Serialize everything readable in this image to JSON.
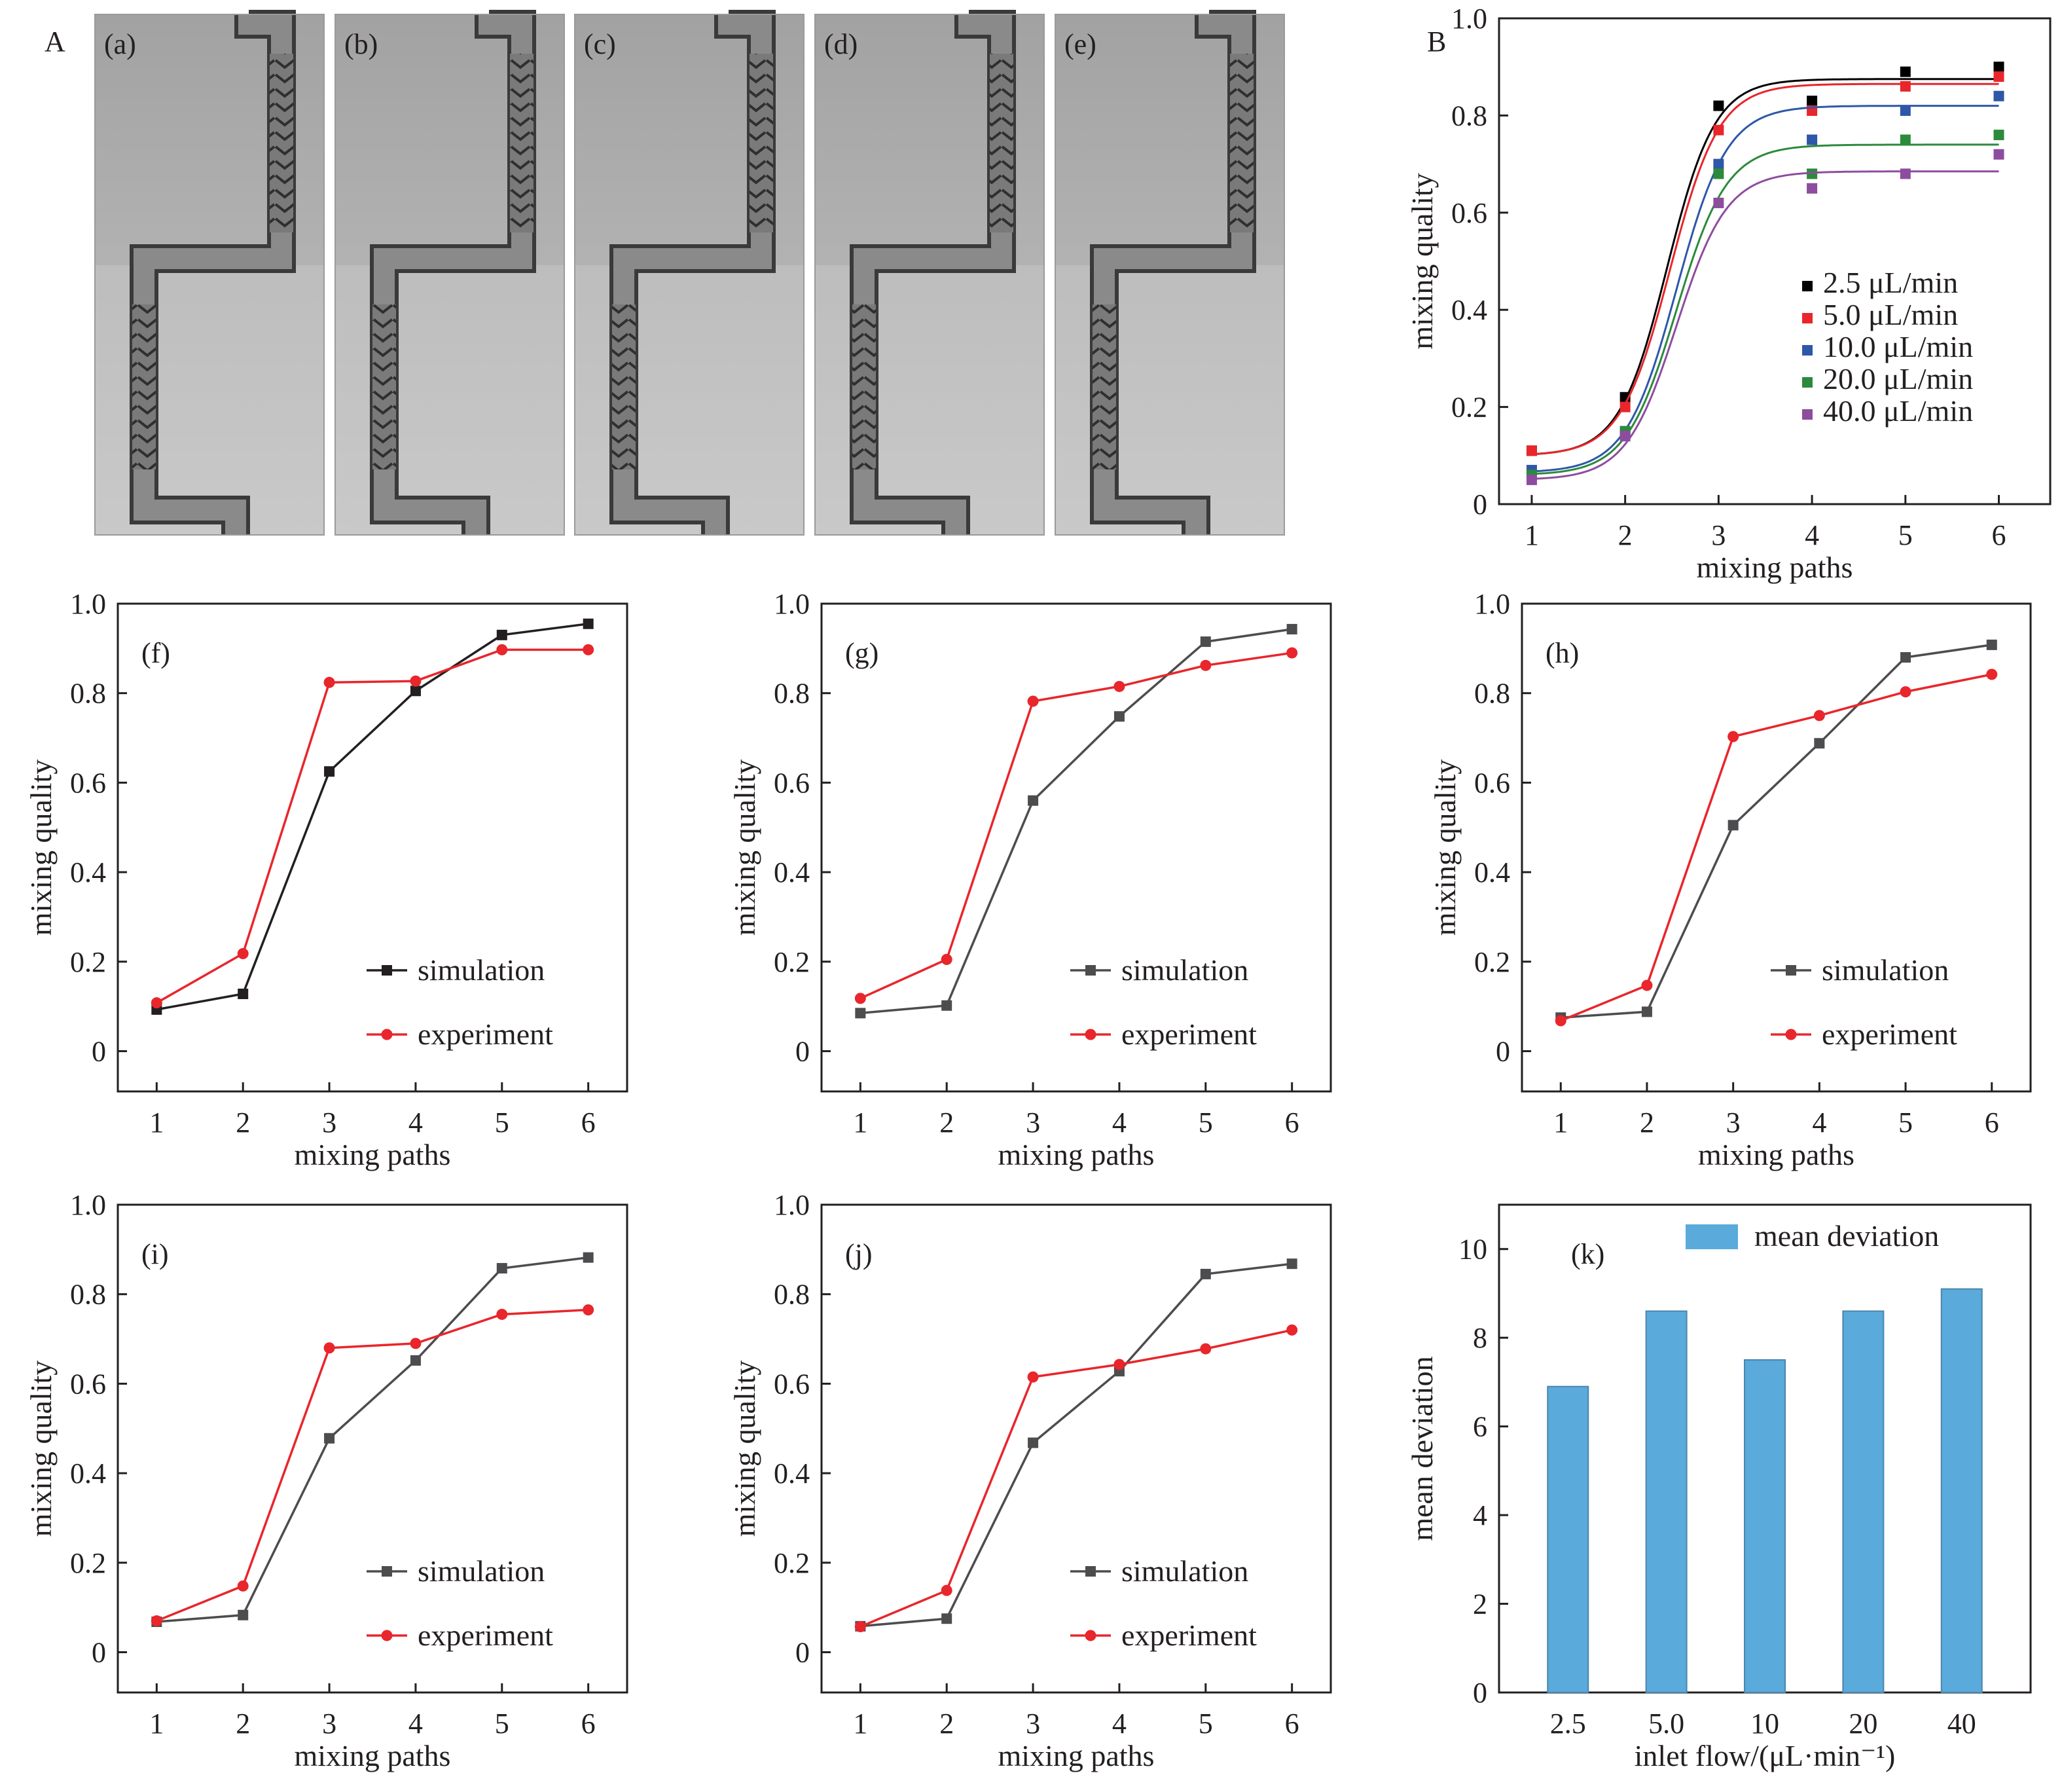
{
  "figure": {
    "panel_letters": {
      "A": "A",
      "B": "B"
    },
    "photo_labels": [
      "(a)",
      "(b)",
      "(c)",
      "(d)",
      "(e)"
    ]
  },
  "chart_data": [
    {
      "id": "B",
      "type": "scatter",
      "panel_label": "",
      "xlabel": "mixing paths",
      "ylabel": "mixing quality",
      "xlim": [
        0.65,
        6.55
      ],
      "ylim": [
        0,
        1.0
      ],
      "xticks": [
        1,
        2,
        3,
        4,
        5,
        6
      ],
      "yticks": [
        0,
        0.2,
        0.4,
        0.6,
        0.8,
        1.0
      ],
      "ytick_labels": [
        "0",
        "0.2",
        "0.4",
        "0.6",
        "0.8",
        "1.0"
      ],
      "legend_position": "center-right",
      "series": [
        {
          "name": "2.5 μL/min",
          "color": "#000000",
          "x": [
            1,
            2,
            3,
            4,
            5,
            6
          ],
          "y": [
            0.11,
            0.22,
            0.82,
            0.83,
            0.89,
            0.9
          ],
          "fit": {
            "low": 0.1,
            "high": 0.875,
            "mid": 2.45,
            "k": 3.9
          }
        },
        {
          "name": "5.0 μL/min",
          "color": "#e8262b",
          "x": [
            1,
            2,
            3,
            4,
            5,
            6
          ],
          "y": [
            0.11,
            0.2,
            0.77,
            0.81,
            0.86,
            0.88
          ],
          "fit": {
            "low": 0.1,
            "high": 0.865,
            "mid": 2.48,
            "k": 3.8
          }
        },
        {
          "name": "10.0 μL/min",
          "color": "#2e57a8",
          "x": [
            1,
            2,
            3,
            4,
            5,
            6
          ],
          "y": [
            0.07,
            0.15,
            0.7,
            0.75,
            0.81,
            0.84
          ],
          "fit": {
            "low": 0.065,
            "high": 0.82,
            "mid": 2.55,
            "k": 3.7
          }
        },
        {
          "name": "20.0 μL/min",
          "color": "#2c8a3c",
          "x": [
            1,
            2,
            3,
            4,
            5,
            6
          ],
          "y": [
            0.06,
            0.15,
            0.68,
            0.68,
            0.75,
            0.76
          ],
          "fit": {
            "low": 0.06,
            "high": 0.74,
            "mid": 2.55,
            "k": 3.7
          }
        },
        {
          "name": "40.0 μL/min",
          "color": "#8d4d9e",
          "x": [
            1,
            2,
            3,
            4,
            5,
            6
          ],
          "y": [
            0.05,
            0.14,
            0.62,
            0.65,
            0.68,
            0.72
          ],
          "fit": {
            "low": 0.05,
            "high": 0.685,
            "mid": 2.55,
            "k": 3.7
          }
        }
      ]
    },
    {
      "id": "f",
      "type": "line",
      "panel_label": "(f)",
      "xlabel": "mixing paths",
      "ylabel": "mixing quality",
      "xlim": [
        0.55,
        6.45
      ],
      "ylim": [
        -0.09,
        1.0
      ],
      "xticks": [
        1,
        2,
        3,
        4,
        5,
        6
      ],
      "yticks": [
        0,
        0.2,
        0.4,
        0.6,
        0.8,
        1.0
      ],
      "ytick_labels": [
        "0",
        "0.2",
        "0.4",
        "0.6",
        "0.8",
        "1.0"
      ],
      "legend_position": "bottom-right",
      "series": [
        {
          "name": "simulation",
          "color": "#231f20",
          "marker": "square",
          "x": [
            1,
            2,
            3,
            4,
            5,
            6
          ],
          "y": [
            0.093,
            0.128,
            0.625,
            0.805,
            0.93,
            0.955
          ]
        },
        {
          "name": "experiment",
          "color": "#e8262b",
          "marker": "circle",
          "x": [
            1,
            2,
            3,
            4,
            5,
            6
          ],
          "y": [
            0.108,
            0.218,
            0.824,
            0.827,
            0.897,
            0.897
          ]
        }
      ]
    },
    {
      "id": "g",
      "type": "line",
      "panel_label": "(g)",
      "xlabel": "mixing paths",
      "ylabel": "mixing quality",
      "xlim": [
        0.55,
        6.45
      ],
      "ylim": [
        -0.09,
        1.0
      ],
      "xticks": [
        1,
        2,
        3,
        4,
        5,
        6
      ],
      "yticks": [
        0,
        0.2,
        0.4,
        0.6,
        0.8,
        1.0
      ],
      "ytick_labels": [
        "0",
        "0.2",
        "0.4",
        "0.6",
        "0.8",
        "1.0"
      ],
      "legend_position": "bottom-right",
      "series": [
        {
          "name": "simulation",
          "color": "#4d4d4f",
          "marker": "square",
          "x": [
            1,
            2,
            3,
            4,
            5,
            6
          ],
          "y": [
            0.085,
            0.102,
            0.56,
            0.748,
            0.915,
            0.943
          ]
        },
        {
          "name": "experiment",
          "color": "#e8262b",
          "marker": "circle",
          "x": [
            1,
            2,
            3,
            4,
            5,
            6
          ],
          "y": [
            0.118,
            0.205,
            0.782,
            0.815,
            0.862,
            0.89
          ]
        }
      ]
    },
    {
      "id": "h",
      "type": "line",
      "panel_label": "(h)",
      "xlabel": "mixing paths",
      "ylabel": "mixing quality",
      "xlim": [
        0.55,
        6.45
      ],
      "ylim": [
        -0.09,
        1.0
      ],
      "xticks": [
        1,
        2,
        3,
        4,
        5,
        6
      ],
      "yticks": [
        0,
        0.2,
        0.4,
        0.6,
        0.8,
        1.0
      ],
      "ytick_labels": [
        "0",
        "0.2",
        "0.4",
        "0.6",
        "0.8",
        "1.0"
      ],
      "legend_position": "bottom-right",
      "series": [
        {
          "name": "simulation",
          "color": "#4d4d4f",
          "marker": "square",
          "x": [
            1,
            2,
            3,
            4,
            5,
            6
          ],
          "y": [
            0.075,
            0.088,
            0.505,
            0.688,
            0.88,
            0.908
          ]
        },
        {
          "name": "experiment",
          "color": "#e8262b",
          "marker": "circle",
          "x": [
            1,
            2,
            3,
            4,
            5,
            6
          ],
          "y": [
            0.068,
            0.147,
            0.703,
            0.75,
            0.803,
            0.842
          ]
        }
      ]
    },
    {
      "id": "i",
      "type": "line",
      "panel_label": "(i)",
      "xlabel": "mixing paths",
      "ylabel": "mixing quality",
      "xlim": [
        0.55,
        6.45
      ],
      "ylim": [
        -0.09,
        1.0
      ],
      "xticks": [
        1,
        2,
        3,
        4,
        5,
        6
      ],
      "yticks": [
        0,
        0.2,
        0.4,
        0.6,
        0.8,
        1.0
      ],
      "ytick_labels": [
        "0",
        "0.2",
        "0.4",
        "0.6",
        "0.8",
        "1.0"
      ],
      "legend_position": "bottom-right",
      "series": [
        {
          "name": "simulation",
          "color": "#4d4d4f",
          "marker": "square",
          "x": [
            1,
            2,
            3,
            4,
            5,
            6
          ],
          "y": [
            0.068,
            0.083,
            0.478,
            0.652,
            0.858,
            0.882
          ]
        },
        {
          "name": "experiment",
          "color": "#e8262b",
          "marker": "circle",
          "x": [
            1,
            2,
            3,
            4,
            5,
            6
          ],
          "y": [
            0.07,
            0.148,
            0.68,
            0.69,
            0.755,
            0.765
          ]
        }
      ]
    },
    {
      "id": "j",
      "type": "line",
      "panel_label": "(j)",
      "xlabel": "mixing paths",
      "ylabel": "mixing quality",
      "xlim": [
        0.55,
        6.45
      ],
      "ylim": [
        -0.09,
        1.0
      ],
      "xticks": [
        1,
        2,
        3,
        4,
        5,
        6
      ],
      "yticks": [
        0,
        0.2,
        0.4,
        0.6,
        0.8,
        1.0
      ],
      "ytick_labels": [
        "0",
        "0.2",
        "0.4",
        "0.6",
        "0.8",
        "1.0"
      ],
      "legend_position": "bottom-right",
      "series": [
        {
          "name": "simulation",
          "color": "#4d4d4f",
          "marker": "square",
          "x": [
            1,
            2,
            3,
            4,
            5,
            6
          ],
          "y": [
            0.058,
            0.075,
            0.468,
            0.628,
            0.845,
            0.868
          ]
        },
        {
          "name": "experiment",
          "color": "#e8262b",
          "marker": "circle",
          "x": [
            1,
            2,
            3,
            4,
            5,
            6
          ],
          "y": [
            0.057,
            0.138,
            0.615,
            0.643,
            0.678,
            0.72
          ]
        }
      ]
    },
    {
      "id": "k",
      "type": "bar",
      "panel_label": "(k)",
      "xlabel": "inlet flow/(μL·min⁻¹)",
      "ylabel": "mean deviation",
      "ylim": [
        0,
        11
      ],
      "yticks": [
        0,
        2,
        4,
        6,
        8,
        10
      ],
      "ytick_labels": [
        "0",
        "2",
        "4",
        "6",
        "8",
        "10"
      ],
      "legend_position": "top-center",
      "categories": [
        "2.5",
        "5.0",
        "10",
        "20",
        "40"
      ],
      "series": [
        {
          "name": "mean deviation",
          "color": "#5aaadb",
          "values": [
            6.9,
            8.6,
            7.5,
            8.6,
            9.1
          ]
        }
      ]
    }
  ]
}
